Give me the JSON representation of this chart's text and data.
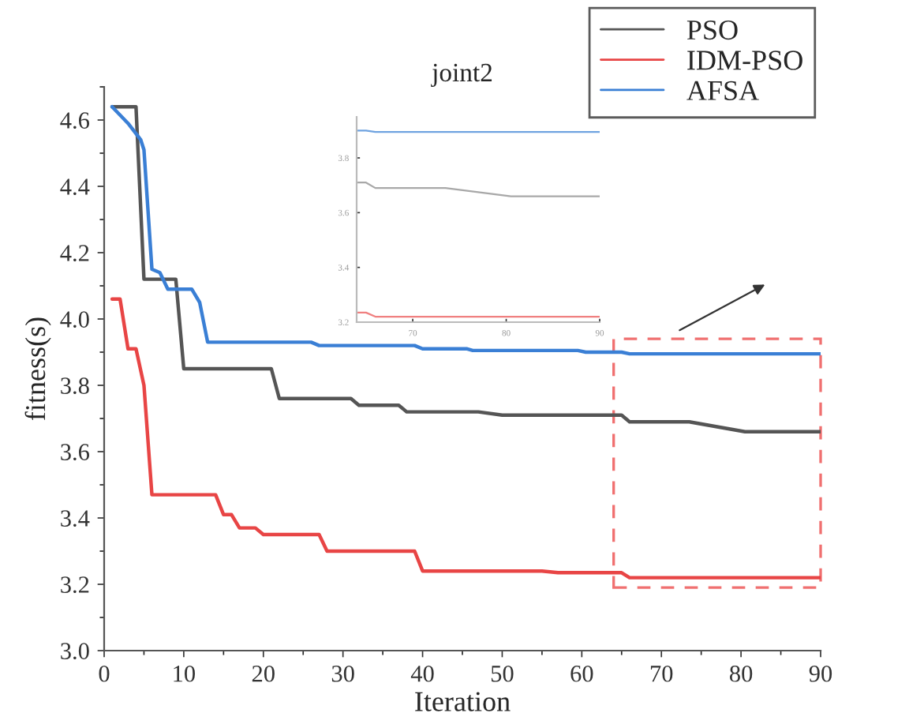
{
  "chart_data": [
    {
      "type": "line",
      "title": "joint2",
      "xlabel": "Iteration",
      "ylabel": "fitness(s)",
      "xlim": [
        0,
        90
      ],
      "ylim": [
        3.0,
        4.7
      ],
      "xticks": [
        0,
        10,
        20,
        30,
        40,
        50,
        60,
        70,
        80,
        90
      ],
      "yticks": [
        {
          "value": 3.0,
          "label": "3.0"
        },
        {
          "value": 3.2,
          "label": "3.2"
        },
        {
          "value": 3.4,
          "label": "3.4"
        },
        {
          "value": 3.6,
          "label": "3.6"
        },
        {
          "value": 3.8,
          "label": "3.8"
        },
        {
          "value": 4.0,
          "label": "4.0"
        },
        {
          "value": 4.2,
          "label": "4.2"
        },
        {
          "value": 4.4,
          "label": "4.4"
        },
        {
          "value": 4.6,
          "label": "4.6"
        }
      ],
      "grid": false,
      "legend": "top right",
      "line_style": "solid",
      "marker": "none",
      "series": [
        {
          "name": "PSO",
          "color": "#555555",
          "x": [
            1,
            4,
            5,
            9,
            10,
            21,
            22,
            31,
            32,
            37,
            38,
            47,
            50,
            65,
            66,
            73.5,
            80.5,
            90
          ],
          "values": [
            4.64,
            4.64,
            4.12,
            4.12,
            3.85,
            3.85,
            3.76,
            3.76,
            3.74,
            3.74,
            3.72,
            3.72,
            3.71,
            3.71,
            3.69,
            3.69,
            3.66,
            3.66
          ]
        },
        {
          "name": "IDM-PSO",
          "color": "#e84545",
          "x": [
            1,
            2,
            3,
            4,
            5,
            6,
            14,
            15,
            16,
            17,
            19,
            20,
            27,
            28,
            39,
            40,
            55,
            57,
            65,
            66,
            90
          ],
          "values": [
            4.06,
            4.06,
            3.91,
            3.91,
            3.8,
            3.47,
            3.47,
            3.41,
            3.41,
            3.37,
            3.37,
            3.35,
            3.35,
            3.3,
            3.3,
            3.24,
            3.24,
            3.235,
            3.235,
            3.22,
            3.22
          ]
        },
        {
          "name": "AFSA",
          "color": "#3a7fd5",
          "x": [
            1,
            3,
            4.6,
            5,
            6,
            7,
            8,
            11,
            12,
            13,
            26,
            27,
            39,
            40,
            45.6,
            46.3,
            59.5,
            60.5,
            65,
            66,
            90
          ],
          "values": [
            4.64,
            4.59,
            4.54,
            4.51,
            4.15,
            4.14,
            4.09,
            4.09,
            4.05,
            3.93,
            3.93,
            3.92,
            3.92,
            3.91,
            3.91,
            3.905,
            3.905,
            3.9,
            3.9,
            3.895,
            3.895
          ]
        }
      ]
    },
    {
      "type": "line",
      "xlim": [
        64,
        90
      ],
      "ylim": [
        3.2,
        3.95
      ],
      "xticks": [
        70,
        80,
        90
      ],
      "yticks": [
        {
          "value": 3.2,
          "label": "3.2"
        },
        {
          "value": 3.4,
          "label": "3.4"
        },
        {
          "value": 3.6,
          "label": "3.6"
        },
        {
          "value": 3.8,
          "label": "3.8"
        }
      ],
      "grid": false,
      "legend": false,
      "line_style": "solid",
      "marker": "none",
      "series": [
        {
          "color": "#a8a8a8",
          "x": [
            64,
            65,
            66,
            73.5,
            80.5,
            90
          ],
          "values": [
            3.71,
            3.71,
            3.69,
            3.69,
            3.66,
            3.66
          ]
        },
        {
          "color": "#f08080",
          "x": [
            64,
            65,
            66,
            90
          ],
          "values": [
            3.235,
            3.235,
            3.22,
            3.22
          ]
        },
        {
          "color": "#6fa3e0",
          "x": [
            64,
            65,
            66,
            90
          ],
          "values": [
            3.9,
            3.9,
            3.895,
            3.895
          ]
        }
      ]
    }
  ]
}
